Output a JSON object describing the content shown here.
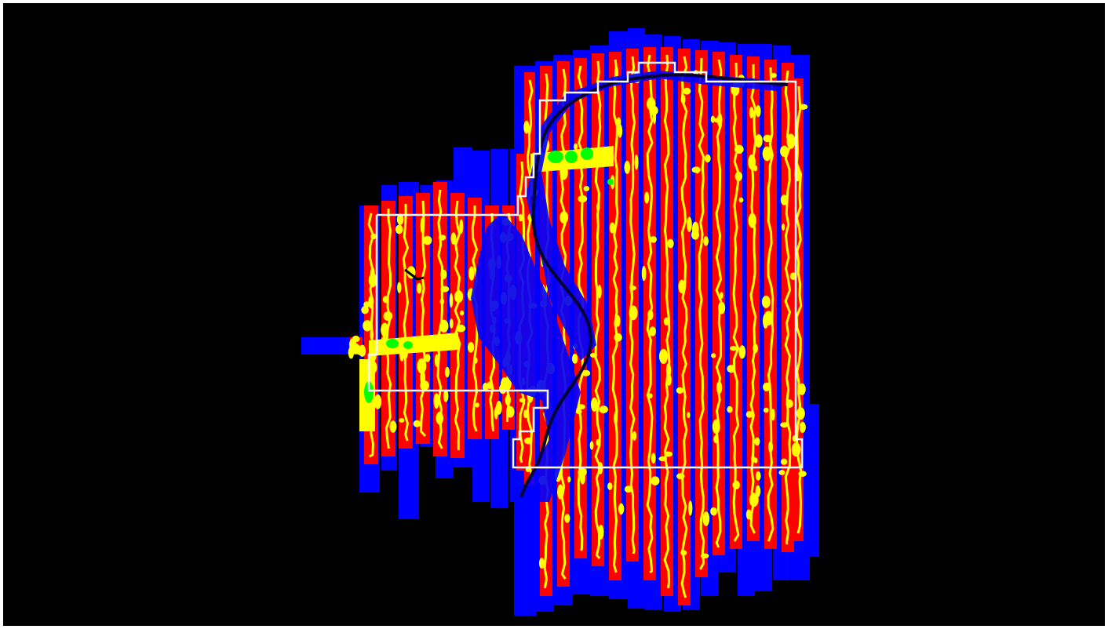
{
  "map": {
    "background_color": "#000000",
    "frame_color": "#ffffff",
    "colors": {
      "coverage_low": "#0000ff",
      "coverage_high": "#ff0000",
      "overlap_gap": "#ffff00",
      "overlap_peak": "#00ff00",
      "boundary": "#ffffff",
      "river": "#000033"
    },
    "layers": [
      {
        "name": "blue-coverage"
      },
      {
        "name": "red-coverage"
      },
      {
        "name": "yellow-gaps"
      },
      {
        "name": "green-peaks"
      },
      {
        "name": "river-channel"
      },
      {
        "name": "survey-boundary"
      }
    ]
  }
}
